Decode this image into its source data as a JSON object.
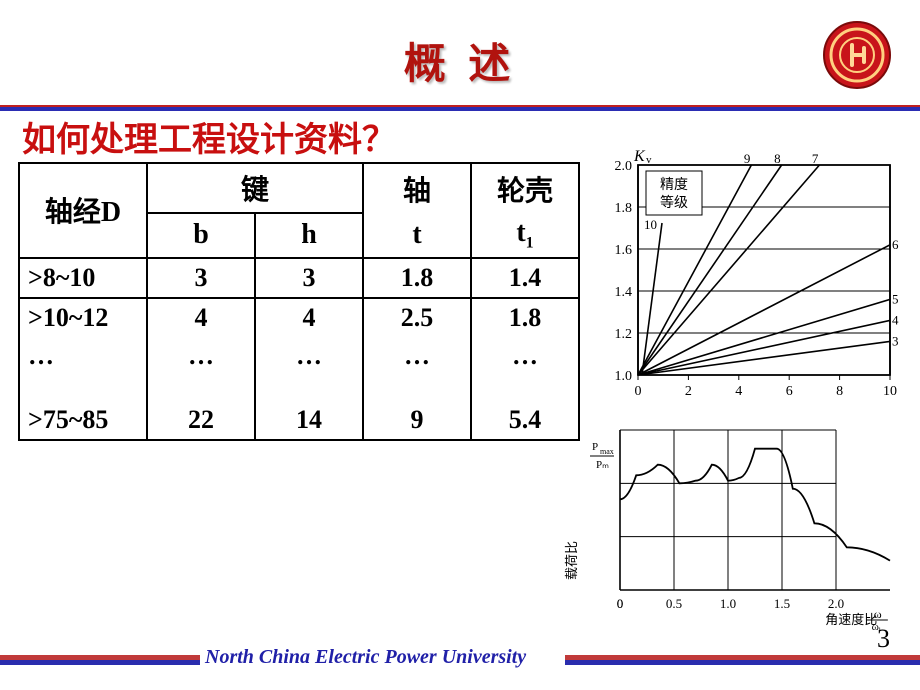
{
  "title": "概 述",
  "subtitle": "如何处理工程设计资料？",
  "table": {
    "headers": {
      "D": "轴经D",
      "key": "键",
      "b": "b",
      "h": "h",
      "shaft": "轴",
      "t": "t",
      "hub": "轮壳",
      "t1_base": "t",
      "t1_sub": "1"
    },
    "rows": [
      {
        "D": ">8~10",
        "b": "3",
        "h": "3",
        "t": "1.8",
        "t1": "1.4"
      },
      {
        "D": ">10~12",
        "b": "4",
        "h": "4",
        "t": "2.5",
        "t1": "1.8"
      },
      {
        "D": "…",
        "b": "…",
        "h": "…",
        "t": "…",
        "t1": "…"
      },
      {
        "D": ">75~85",
        "b": "22",
        "h": "14",
        "t": "9",
        "t1": "5.4"
      }
    ]
  },
  "chart1": {
    "type": "line",
    "ylabel": "Kᵥ",
    "xlim": [
      0,
      10
    ],
    "ylim": [
      1.0,
      2.0
    ],
    "xticks": [
      0,
      2,
      4,
      6,
      8,
      10
    ],
    "yticks": [
      1.0,
      1.2,
      1.4,
      1.6,
      1.8,
      2.0
    ],
    "legend_title": "精度\n等级",
    "legend_label_10": "10",
    "series_labels": [
      "3",
      "4",
      "5",
      "6",
      "7",
      "8",
      "9"
    ],
    "line_color": "#000000",
    "background": "#ffffff",
    "series": {
      "9": [
        [
          0,
          1.0
        ],
        [
          4.5,
          2.0
        ]
      ],
      "8": [
        [
          0,
          1.0
        ],
        [
          5.7,
          2.0
        ]
      ],
      "7": [
        [
          0,
          1.0
        ],
        [
          7.2,
          2.0
        ]
      ],
      "6": [
        [
          0,
          1.0
        ],
        [
          10,
          1.62
        ]
      ],
      "5": [
        [
          0,
          1.0
        ],
        [
          10,
          1.36
        ]
      ],
      "4": [
        [
          0,
          1.0
        ],
        [
          10,
          1.26
        ]
      ],
      "3": [
        [
          0,
          1.0
        ],
        [
          10,
          1.16
        ]
      ],
      "10": [
        [
          0,
          1.0
        ],
        [
          0.7,
          1.9
        ],
        [
          0.7,
          1.9
        ]
      ]
    }
  },
  "chart2": {
    "type": "line",
    "xlabel": "角速度比 ω/ωᵢ",
    "ylabel": "载荷比  Pₘₐₓ/Pₘ",
    "xlim": [
      0,
      2.5
    ],
    "ylim": [
      0,
      3
    ],
    "xticks": [
      0,
      0.5,
      1.0,
      1.5,
      2.0
    ],
    "line_color": "#000000",
    "background": "#ffffff",
    "curve": [
      [
        0.0,
        1.7
      ],
      [
        0.15,
        2.15
      ],
      [
        0.35,
        2.35
      ],
      [
        0.55,
        2.0
      ],
      [
        0.7,
        2.05
      ],
      [
        0.85,
        2.35
      ],
      [
        1.0,
        2.05
      ],
      [
        1.1,
        2.1
      ],
      [
        1.25,
        2.65
      ],
      [
        1.45,
        2.65
      ],
      [
        1.6,
        1.9
      ],
      [
        1.8,
        1.25
      ],
      [
        2.1,
        0.8
      ],
      [
        2.5,
        0.55
      ]
    ]
  },
  "footer": {
    "university": "North China Electric Power University"
  },
  "page_number": "3",
  "colors": {
    "title_red": "#b1130e",
    "subtitle_red": "#c80f0f",
    "hr_red": "#c02020",
    "hr_blue": "#2b2db3",
    "footer_red": "#c13a3a",
    "footer_blue": "#2a2dae",
    "footer_text": "#2020a8"
  }
}
